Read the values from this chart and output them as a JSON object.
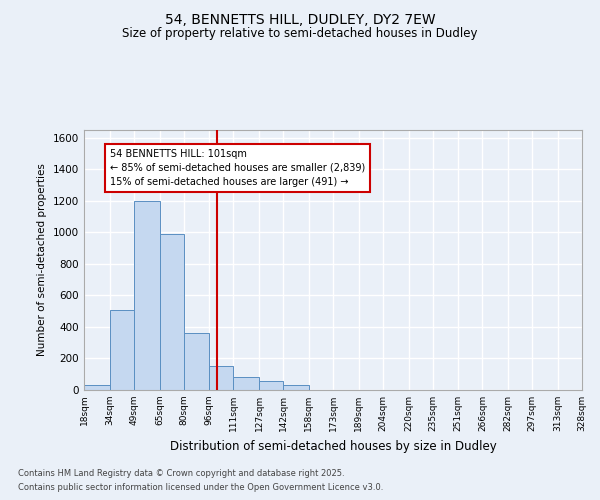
{
  "title1": "54, BENNETTS HILL, DUDLEY, DY2 7EW",
  "title2": "Size of property relative to semi-detached houses in Dudley",
  "xlabel": "Distribution of semi-detached houses by size in Dudley",
  "ylabel": "Number of semi-detached properties",
  "footnote1": "Contains HM Land Registry data © Crown copyright and database right 2025.",
  "footnote2": "Contains public sector information licensed under the Open Government Licence v3.0.",
  "annotation_title": "54 BENNETTS HILL: 101sqm",
  "annotation_line1": "← 85% of semi-detached houses are smaller (2,839)",
  "annotation_line2": "15% of semi-detached houses are larger (491) →",
  "property_size": 101,
  "bin_edges": [
    18,
    34,
    49,
    65,
    80,
    96,
    111,
    127,
    142,
    158,
    173,
    189,
    204,
    220,
    235,
    251,
    266,
    282,
    297,
    313,
    328
  ],
  "bin_labels": [
    "18sqm",
    "34sqm",
    "49sqm",
    "65sqm",
    "80sqm",
    "96sqm",
    "111sqm",
    "127sqm",
    "142sqm",
    "158sqm",
    "173sqm",
    "189sqm",
    "204sqm",
    "220sqm",
    "235sqm",
    "251sqm",
    "266sqm",
    "282sqm",
    "297sqm",
    "313sqm",
    "328sqm"
  ],
  "bar_heights": [
    30,
    510,
    1200,
    990,
    360,
    150,
    80,
    60,
    30,
    0,
    0,
    0,
    0,
    0,
    0,
    0,
    0,
    0,
    0,
    0
  ],
  "bar_color": "#c5d8f0",
  "bar_edge_color": "#5a8fc2",
  "vline_x": 101,
  "vline_color": "#cc0000",
  "ylim": [
    0,
    1650
  ],
  "yticks": [
    0,
    200,
    400,
    600,
    800,
    1000,
    1200,
    1400,
    1600
  ],
  "bg_color": "#eaf0f8",
  "plot_bg_color": "#eaf0f8",
  "grid_color": "#ffffff",
  "annotation_box_color": "#cc0000",
  "annotation_bg": "#ffffff",
  "fig_width": 6.0,
  "fig_height": 5.0,
  "dpi": 100
}
